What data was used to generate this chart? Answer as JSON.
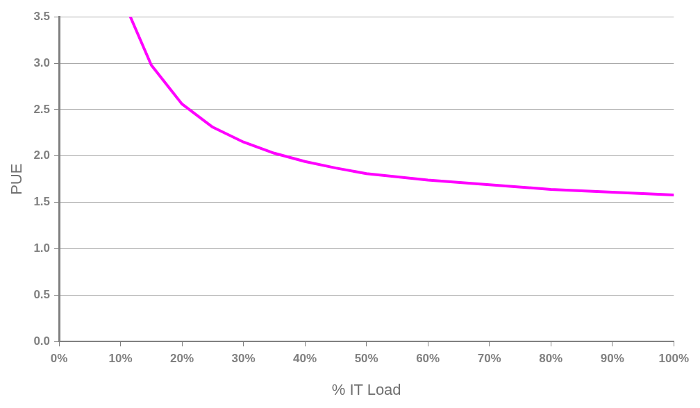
{
  "chart_data": {
    "type": "line",
    "xlabel": "% IT Load",
    "ylabel": "PUE",
    "x": [
      11.6,
      15,
      20,
      25,
      30,
      35,
      40,
      45,
      50,
      60,
      70,
      80,
      90,
      100
    ],
    "series": [
      {
        "color": "#ff00ff",
        "values": [
          3.5,
          2.98,
          2.56,
          2.31,
          2.15,
          2.03,
          1.94,
          1.87,
          1.81,
          1.74,
          1.69,
          1.64,
          1.61,
          1.58
        ]
      }
    ],
    "xlim": [
      0,
      100
    ],
    "xticks": [
      {
        "value": 0,
        "label": "0%"
      },
      {
        "value": 10,
        "label": "10%"
      },
      {
        "value": 20,
        "label": "20%"
      },
      {
        "value": 30,
        "label": "30%"
      },
      {
        "value": 40,
        "label": "40%"
      },
      {
        "value": 50,
        "label": "50%"
      },
      {
        "value": 60,
        "label": "60%"
      },
      {
        "value": 70,
        "label": "70%"
      },
      {
        "value": 80,
        "label": "80%"
      },
      {
        "value": 90,
        "label": "90%"
      },
      {
        "value": 100,
        "label": "100%"
      }
    ],
    "ylim": [
      0,
      3.5
    ],
    "yticks": [
      {
        "value": 0,
        "label": "0.0"
      },
      {
        "value": 0.5,
        "label": "0.5"
      },
      {
        "value": 1,
        "label": "1.0"
      },
      {
        "value": 1.5,
        "label": "1.5"
      },
      {
        "value": 2,
        "label": "2.0"
      },
      {
        "value": 2.5,
        "label": "2.5"
      },
      {
        "value": 3,
        "label": "3.0"
      },
      {
        "value": 3.5,
        "label": "3.5"
      }
    ],
    "grid": "y",
    "legend": false,
    "marker": "none",
    "line_style": "solid"
  }
}
